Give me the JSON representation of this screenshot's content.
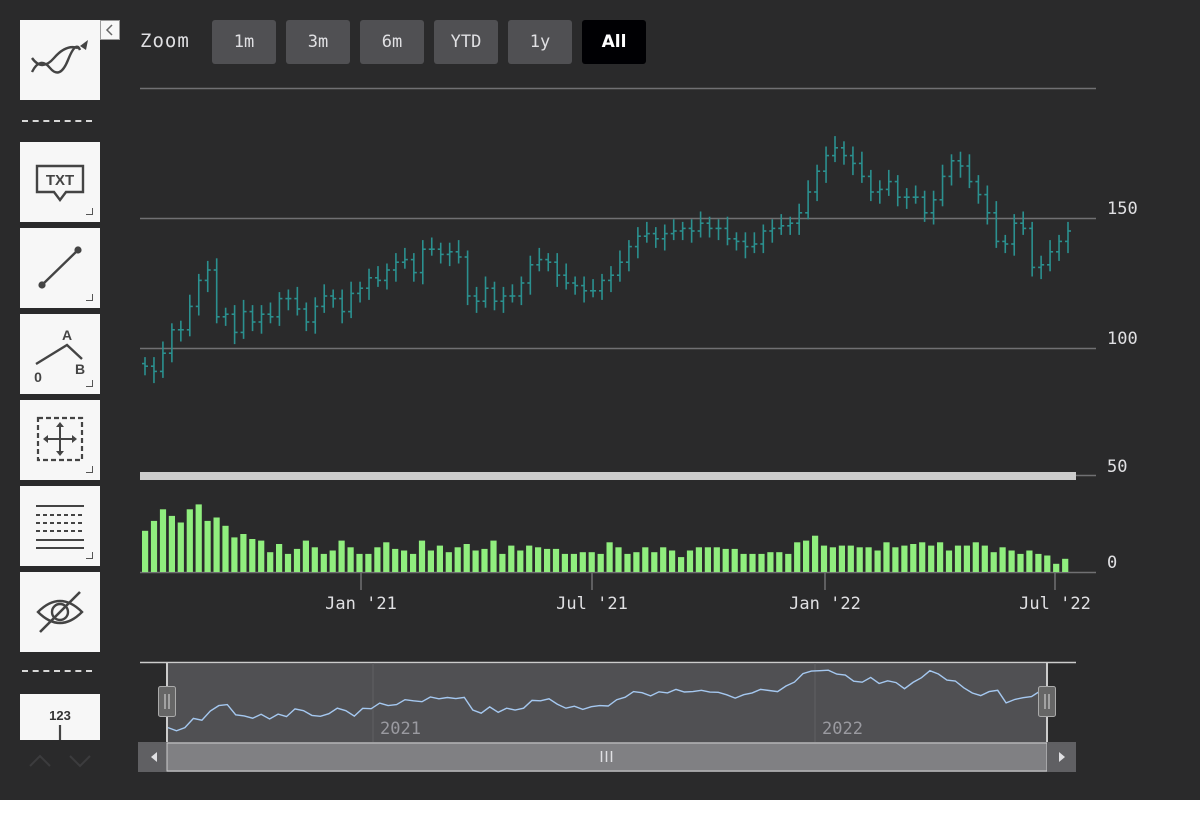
{
  "zoom": {
    "label": "Zoom",
    "buttons": [
      {
        "id": "1m",
        "label": "1m",
        "active": false
      },
      {
        "id": "3m",
        "label": "3m",
        "active": false
      },
      {
        "id": "6m",
        "label": "6m",
        "active": false
      },
      {
        "id": "ytd",
        "label": "YTD",
        "active": false
      },
      {
        "id": "1y",
        "label": "1y",
        "active": false
      },
      {
        "id": "all",
        "label": "All",
        "active": true
      }
    ]
  },
  "toolbar": {
    "tools": [
      {
        "name": "indicators-icon"
      },
      {
        "name": "text-annotation-icon",
        "text": "TXT"
      },
      {
        "name": "line-segment-icon"
      },
      {
        "name": "elliott-wave-icon",
        "labels": [
          "A",
          "0",
          "B"
        ]
      },
      {
        "name": "measure-icon"
      },
      {
        "name": "fibonacci-icon"
      },
      {
        "name": "toggle-annotations-icon"
      },
      {
        "name": "current-price-indicator-icon",
        "text": "123"
      }
    ]
  },
  "colors": {
    "background": "#2a2a2b",
    "ohlc": "#2b908f",
    "volume": "#90ee7e",
    "navigator_line": "#a5c8f0",
    "button_active": "#000003"
  },
  "chart_data": {
    "type": "ohlc",
    "x_tick_labels": [
      "Jan '21",
      "Jul '21",
      "Jan '22",
      "Jul '22"
    ],
    "y_tick_labels": [
      "150",
      "100",
      "50",
      "0"
    ],
    "ylim": [
      0,
      200
    ],
    "grid": true,
    "navigator_labels": [
      "2021",
      "2022"
    ],
    "price_close": [
      93.0,
      91.0,
      98.0,
      107.0,
      107.0,
      116.0,
      126.0,
      130.0,
      112.0,
      113.0,
      106.0,
      114.0,
      110.0,
      113.0,
      112.0,
      119.0,
      119.0,
      115.0,
      110.0,
      116.0,
      120.0,
      119.0,
      114.0,
      121.0,
      123.0,
      127.0,
      126.0,
      130.0,
      133.0,
      134.0,
      129.0,
      138.0,
      138.0,
      136.0,
      137.0,
      135.0,
      120.0,
      118.0,
      123.0,
      118.0,
      120.0,
      120.0,
      125.0,
      132.0,
      134.0,
      133.0,
      128.0,
      125.0,
      124.0,
      122.0,
      122.0,
      126.0,
      128.0,
      133.0,
      139.0,
      143.0,
      144.0,
      142.0,
      144.0,
      145.0,
      146.0,
      145.0,
      148.0,
      146.0,
      146.0,
      142.0,
      141.0,
      139.0,
      140.0,
      145.0,
      146.0,
      147.0,
      148.0,
      152.0,
      160.0,
      168.0,
      174.0,
      177.0,
      174.0,
      171.0,
      166.0,
      160.0,
      161.0,
      164.0,
      158.0,
      158.0,
      158.0,
      152.0,
      157.0,
      166.0,
      172.0,
      170.0,
      164.0,
      159.0,
      152.0,
      141.0,
      140.0,
      148.0,
      146.0,
      131.0,
      132.0,
      137.0,
      141.0,
      145.0
    ],
    "volume": [
      25,
      31,
      38,
      34,
      30,
      38,
      41,
      31,
      33,
      28,
      21,
      23,
      20,
      19,
      12,
      17,
      11,
      14,
      19,
      15,
      11,
      13,
      19,
      15,
      11,
      11,
      15,
      18,
      14,
      13,
      11,
      19,
      13,
      16,
      12,
      15,
      17,
      13,
      14,
      19,
      11,
      16,
      13,
      16,
      15,
      14,
      14,
      11,
      11,
      12,
      12,
      11,
      18,
      15,
      11,
      12,
      15,
      12,
      15,
      13,
      9,
      13,
      15,
      15,
      15,
      14,
      14,
      11,
      11,
      11,
      12,
      12,
      11,
      18,
      19,
      22,
      16,
      15,
      16,
      16,
      15,
      15,
      13,
      18,
      15,
      16,
      17,
      18,
      16,
      18,
      13,
      16,
      16,
      18,
      16,
      12,
      15,
      13,
      11,
      13,
      11,
      10,
      5,
      8
    ]
  }
}
